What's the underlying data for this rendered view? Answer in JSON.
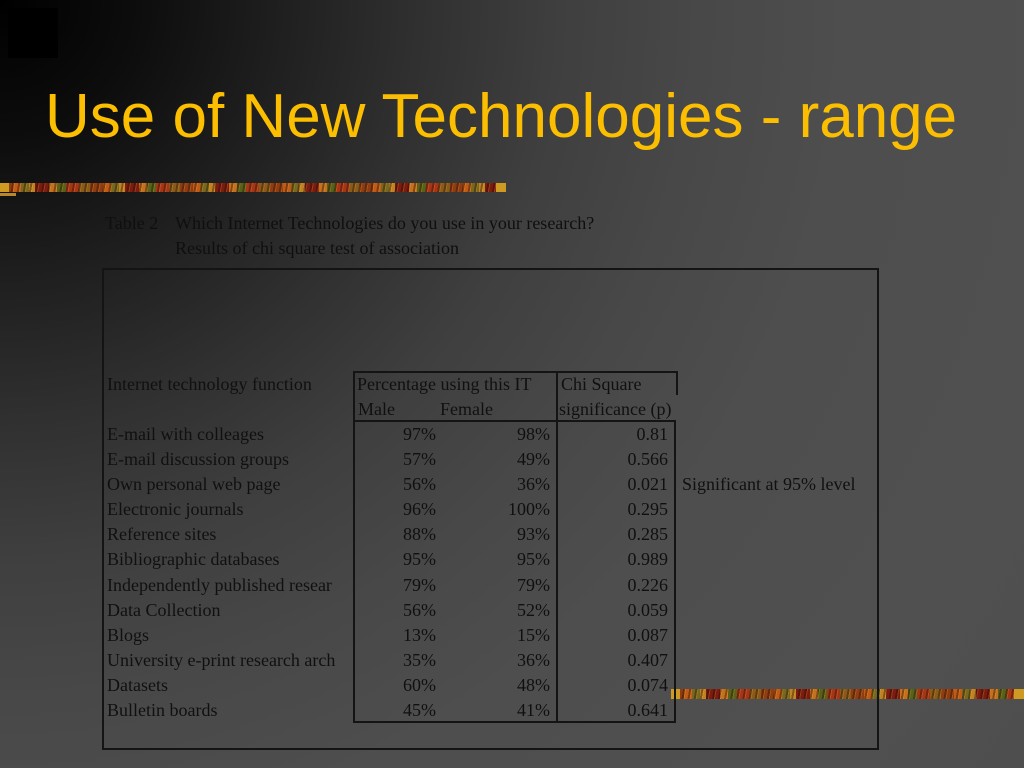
{
  "slide": {
    "title": "Use of New Technologies - range",
    "colors": {
      "title_text": "#FBBE00",
      "deco_gold": "#CF9A22",
      "deco_autumn_red": "#8F3C12",
      "deco_autumn_orange": "#C4701F",
      "deco_autumn_green": "#586019",
      "background_dark": "#000000",
      "background_gray": "#4E4E4E",
      "table_text": "#101010"
    }
  },
  "caption": {
    "label": "Table 2",
    "line1": "Which Internet Technologies do you use in your research?",
    "line2": "Results of chi square test of association"
  },
  "table": {
    "col1_header": "Internet technology function",
    "pct_group_header": "Percentage using this IT",
    "male_header": "Male",
    "female_header": "Female",
    "chi_header_line1": "Chi Square",
    "chi_header_line2": "significance (p)",
    "rows": [
      {
        "label": "E-mail with colleages",
        "male": "97%",
        "female": "98%",
        "p": "0.81",
        "note": ""
      },
      {
        "label": "E-mail discussion groups",
        "male": "57%",
        "female": "49%",
        "p": "0.566",
        "note": ""
      },
      {
        "label": "Own personal web page",
        "male": "56%",
        "female": "36%",
        "p": "0.021",
        "note": "Significant at 95% level"
      },
      {
        "label": "Electronic journals",
        "male": "96%",
        "female": "100%",
        "p": "0.295",
        "note": ""
      },
      {
        "label": "Reference sites",
        "male": "88%",
        "female": "93%",
        "p": "0.285",
        "note": ""
      },
      {
        "label": "Bibliographic databases",
        "male": "95%",
        "female": "95%",
        "p": "0.989",
        "note": ""
      },
      {
        "label": "Independently published resear",
        "male": "79%",
        "female": "79%",
        "p": "0.226",
        "note": ""
      },
      {
        "label": "Data Collection",
        "male": "56%",
        "female": "52%",
        "p": "0.059",
        "note": ""
      },
      {
        "label": "Blogs",
        "male": "13%",
        "female": "15%",
        "p": "0.087",
        "note": ""
      },
      {
        "label": "University e-print research arch",
        "male": "35%",
        "female": "36%",
        "p": "0.407",
        "note": ""
      },
      {
        "label": "Datasets",
        "male": "60%",
        "female": "48%",
        "p": "0.074",
        "note": ""
      },
      {
        "label": "Bulletin boards",
        "male": "45%",
        "female": "41%",
        "p": "0.641",
        "note": ""
      }
    ]
  }
}
